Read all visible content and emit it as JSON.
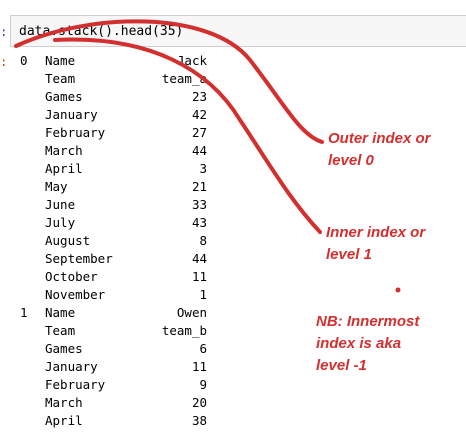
{
  "input": {
    "prompt": ":",
    "code": "data.stack().head(35)"
  },
  "output": {
    "prompt": ":",
    "rows": [
      {
        "outer": "0",
        "inner": "Name",
        "value": "Jack"
      },
      {
        "outer": "",
        "inner": "Team",
        "value": "team_a"
      },
      {
        "outer": "",
        "inner": "Games",
        "value": "23"
      },
      {
        "outer": "",
        "inner": "January",
        "value": "42"
      },
      {
        "outer": "",
        "inner": "February",
        "value": "27"
      },
      {
        "outer": "",
        "inner": "March",
        "value": "44"
      },
      {
        "outer": "",
        "inner": "April",
        "value": "3"
      },
      {
        "outer": "",
        "inner": "May",
        "value": "21"
      },
      {
        "outer": "",
        "inner": "June",
        "value": "33"
      },
      {
        "outer": "",
        "inner": "July",
        "value": "43"
      },
      {
        "outer": "",
        "inner": "August",
        "value": "8"
      },
      {
        "outer": "",
        "inner": "September",
        "value": "44"
      },
      {
        "outer": "",
        "inner": "October",
        "value": "11"
      },
      {
        "outer": "",
        "inner": "November",
        "value": "1"
      },
      {
        "outer": "1",
        "inner": "Name",
        "value": "Owen"
      },
      {
        "outer": "",
        "inner": "Team",
        "value": "team_b"
      },
      {
        "outer": "",
        "inner": "Games",
        "value": "6"
      },
      {
        "outer": "",
        "inner": "January",
        "value": "11"
      },
      {
        "outer": "",
        "inner": "February",
        "value": "9"
      },
      {
        "outer": "",
        "inner": "March",
        "value": "20"
      },
      {
        "outer": "",
        "inner": "April",
        "value": "38"
      }
    ]
  },
  "annotations": {
    "outer": [
      "Outer index or",
      "level 0"
    ],
    "inner": [
      "Inner index or",
      "level 1"
    ],
    "note": [
      "NB: Innermost",
      "index is aka",
      "level -1"
    ]
  },
  "colors": {
    "annotation": "#d32f2f",
    "cell_background": "#f7f7f7",
    "cell_border": "#cfcfcf"
  }
}
